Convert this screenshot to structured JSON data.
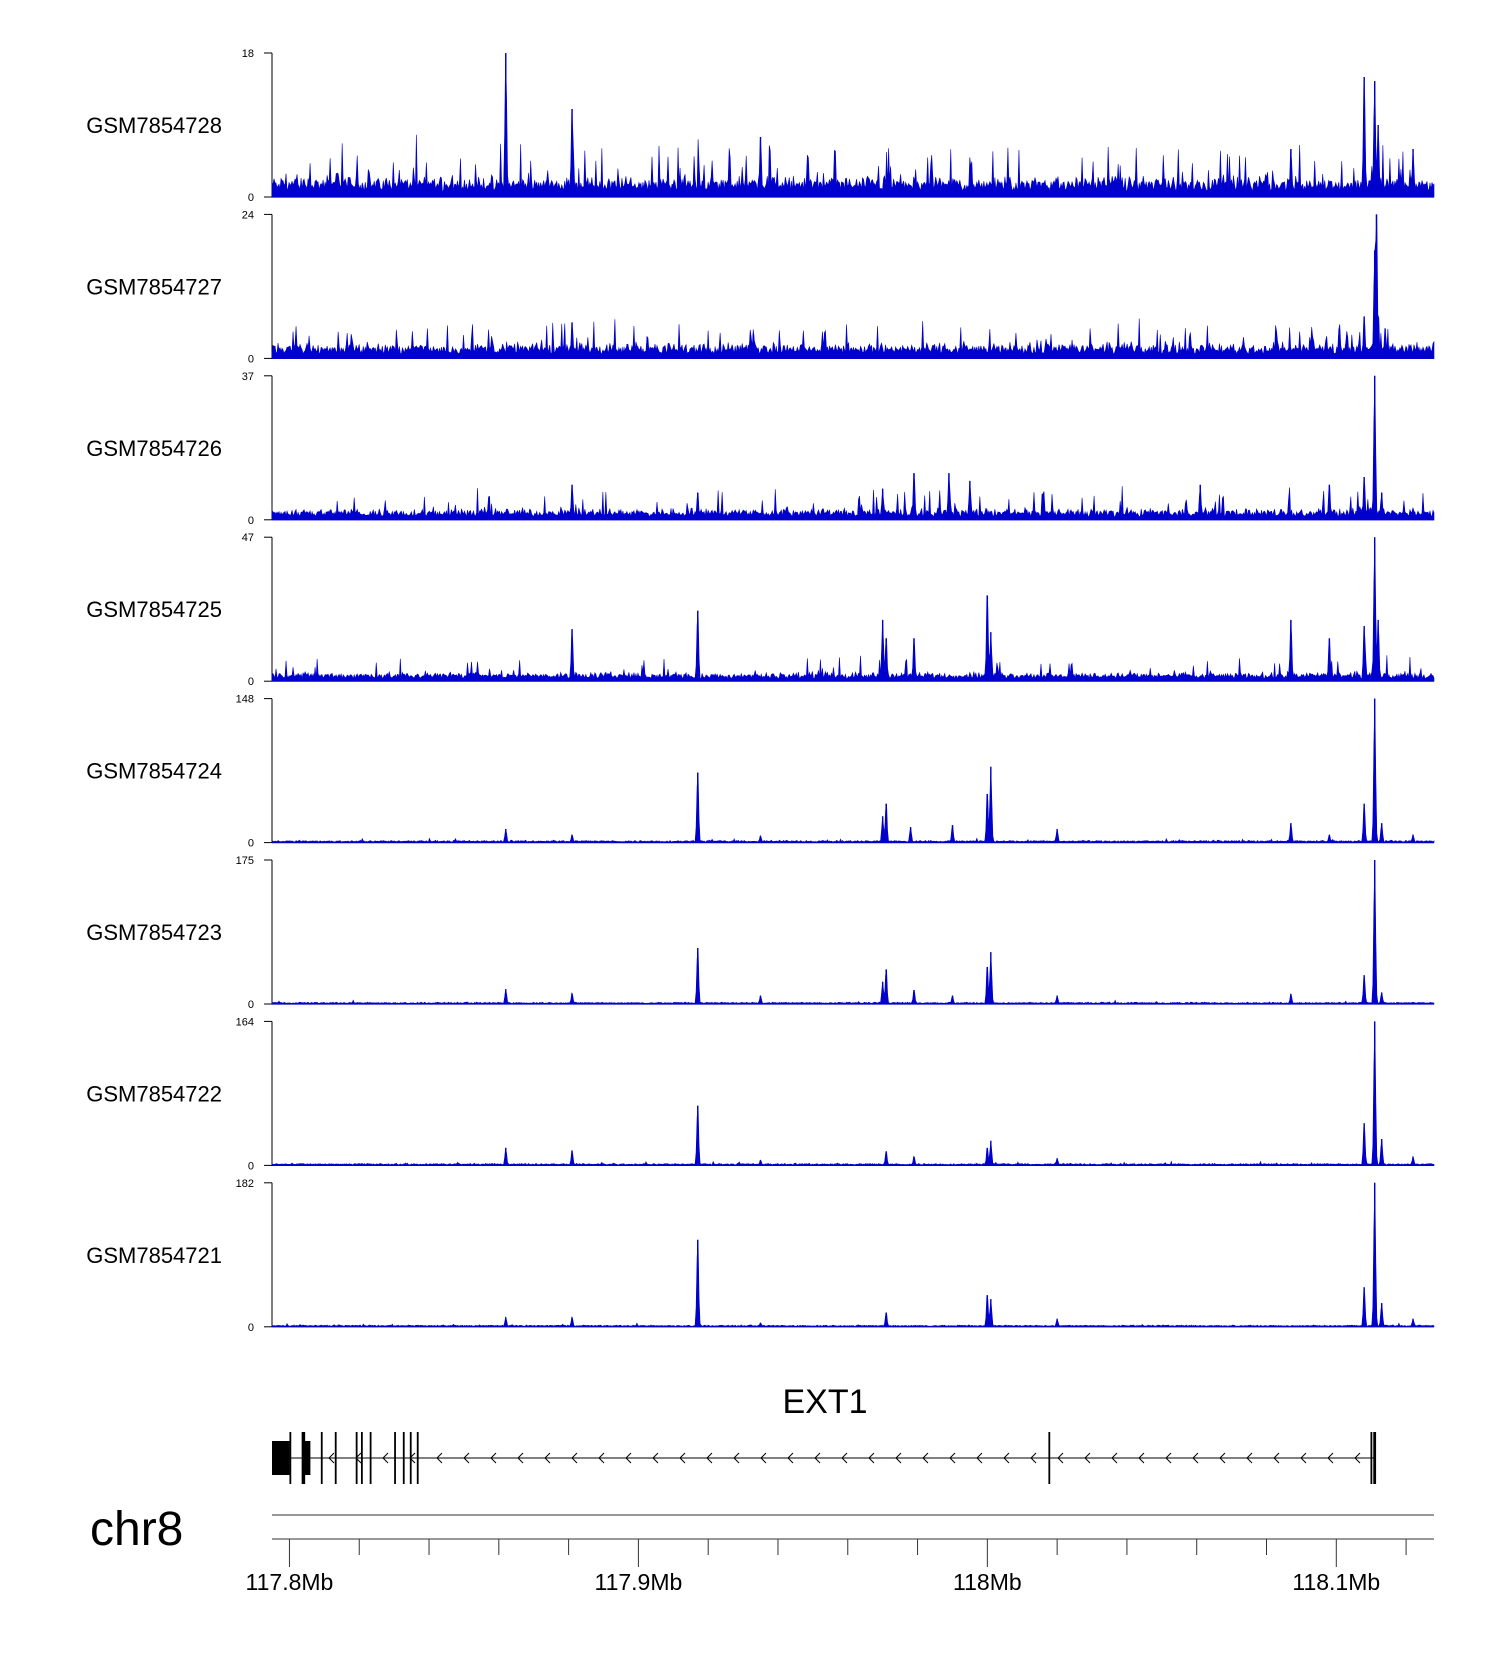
{
  "chart_data": {
    "type": "area",
    "title": "",
    "xlabel": "",
    "ylabel": "",
    "x_units": "Mb",
    "xlim": [
      117.795,
      118.128
    ],
    "grid": false,
    "color": "#0000cc",
    "chromosome": "chr8",
    "x_ticks": [
      117.8,
      117.9,
      118.0,
      118.1
    ],
    "x_tick_labels": [
      "117.8Mb",
      "117.9Mb",
      "118Mb",
      "118.1Mb"
    ],
    "x_minor_step": 0.02,
    "tracks": [
      {
        "name": "GSM7854728",
        "ymax": 18,
        "ymin": 0,
        "ymax_label": "18",
        "ymin_label": "0",
        "baseline": 1.6,
        "noise": 1.2,
        "spike_rate": 0.1,
        "spike_scale": 5.0,
        "peaks": [
          [
            117.862,
            18
          ],
          [
            117.881,
            11
          ],
          [
            117.935,
            7.5
          ],
          [
            118.087,
            6
          ],
          [
            118.108,
            15
          ],
          [
            118.111,
            14.5
          ],
          [
            118.112,
            9
          ],
          [
            118.122,
            6
          ]
        ]
      },
      {
        "name": "GSM7854727",
        "ymax": 24,
        "ymin": 0,
        "ymax_label": "24",
        "ymin_label": "0",
        "baseline": 1.6,
        "noise": 1.2,
        "spike_rate": 0.09,
        "spike_scale": 4.5,
        "peaks": [
          [
            117.881,
            6
          ],
          [
            117.933,
            4
          ],
          [
            118.108,
            7
          ],
          [
            118.111,
            18
          ],
          [
            118.1115,
            24
          ],
          [
            118.114,
            5
          ]
        ]
      },
      {
        "name": "GSM7854726",
        "ymax": 37,
        "ymin": 0,
        "ymax_label": "37",
        "ymin_label": "0",
        "baseline": 1.8,
        "noise": 1.5,
        "spike_rate": 0.08,
        "spike_scale": 6,
        "peaks": [
          [
            117.881,
            9
          ],
          [
            117.917,
            7
          ],
          [
            117.97,
            8
          ],
          [
            117.979,
            12
          ],
          [
            117.989,
            12
          ],
          [
            117.995,
            10
          ],
          [
            118.061,
            9
          ],
          [
            118.098,
            9
          ],
          [
            118.108,
            11
          ],
          [
            118.111,
            37
          ],
          [
            118.113,
            7
          ]
        ]
      },
      {
        "name": "GSM7854725",
        "ymax": 47,
        "ymin": 0,
        "ymax_label": "47",
        "ymin_label": "0",
        "baseline": 1.8,
        "noise": 1.5,
        "spike_rate": 0.06,
        "spike_scale": 6,
        "peaks": [
          [
            117.881,
            17
          ],
          [
            117.917,
            23
          ],
          [
            117.97,
            20
          ],
          [
            117.971,
            14
          ],
          [
            117.979,
            14
          ],
          [
            118.0,
            28
          ],
          [
            118.001,
            16
          ],
          [
            118.087,
            20
          ],
          [
            118.098,
            14
          ],
          [
            118.108,
            18
          ],
          [
            118.111,
            47
          ],
          [
            118.112,
            20
          ]
        ]
      },
      {
        "name": "GSM7854724",
        "ymax": 148,
        "ymin": 0,
        "ymax_label": "148",
        "ymin_label": "0",
        "baseline": 1.5,
        "noise": 1.0,
        "spike_rate": 0.02,
        "spike_scale": 3,
        "peaks": [
          [
            117.862,
            14
          ],
          [
            117.881,
            8
          ],
          [
            117.917,
            72
          ],
          [
            117.935,
            7
          ],
          [
            117.97,
            27
          ],
          [
            117.971,
            40
          ],
          [
            117.978,
            16
          ],
          [
            117.99,
            18
          ],
          [
            118.0,
            50
          ],
          [
            118.001,
            78
          ],
          [
            118.02,
            14
          ],
          [
            118.087,
            20
          ],
          [
            118.098,
            8
          ],
          [
            118.108,
            40
          ],
          [
            118.111,
            148
          ],
          [
            118.113,
            20
          ],
          [
            118.122,
            8
          ]
        ]
      },
      {
        "name": "GSM7854723",
        "ymax": 175,
        "ymin": 0,
        "ymax_label": "175",
        "ymin_label": "0",
        "baseline": 1.5,
        "noise": 1.0,
        "spike_rate": 0.02,
        "spike_scale": 3,
        "peaks": [
          [
            117.862,
            18
          ],
          [
            117.881,
            13
          ],
          [
            117.917,
            68
          ],
          [
            117.935,
            10
          ],
          [
            117.97,
            27
          ],
          [
            117.971,
            42
          ],
          [
            117.979,
            17
          ],
          [
            117.99,
            10
          ],
          [
            118.0,
            45
          ],
          [
            118.001,
            63
          ],
          [
            118.02,
            10
          ],
          [
            118.087,
            12
          ],
          [
            118.108,
            35
          ],
          [
            118.111,
            175
          ],
          [
            118.113,
            14
          ]
        ]
      },
      {
        "name": "GSM7854722",
        "ymax": 164,
        "ymin": 0,
        "ymax_label": "164",
        "ymin_label": "0",
        "baseline": 1.5,
        "noise": 1.0,
        "spike_rate": 0.02,
        "spike_scale": 3,
        "peaks": [
          [
            117.862,
            20
          ],
          [
            117.881,
            17
          ],
          [
            117.917,
            68
          ],
          [
            117.935,
            6
          ],
          [
            117.971,
            16
          ],
          [
            117.979,
            10
          ],
          [
            118.0,
            20
          ],
          [
            118.001,
            28
          ],
          [
            118.02,
            8
          ],
          [
            118.108,
            48
          ],
          [
            118.111,
            164
          ],
          [
            118.113,
            30
          ],
          [
            118.122,
            10
          ]
        ]
      },
      {
        "name": "GSM7854721",
        "ymax": 182,
        "ymin": 0,
        "ymax_label": "182",
        "ymin_label": "0",
        "baseline": 1.5,
        "noise": 1.0,
        "spike_rate": 0.02,
        "spike_scale": 3,
        "peaks": [
          [
            117.862,
            12
          ],
          [
            117.881,
            12
          ],
          [
            117.917,
            110
          ],
          [
            117.935,
            5
          ],
          [
            117.971,
            18
          ],
          [
            118.0,
            40
          ],
          [
            118.001,
            35
          ],
          [
            118.02,
            10
          ],
          [
            118.108,
            50
          ],
          [
            118.111,
            182
          ],
          [
            118.113,
            30
          ],
          [
            118.122,
            10
          ]
        ]
      }
    ],
    "gene": {
      "name": "EXT1",
      "strand": "-",
      "start": 117.795,
      "end": 118.111,
      "exons": [
        [
          117.795,
          117.8
        ],
        [
          117.8,
          117.8005
        ],
        [
          117.8035,
          117.8045
        ],
        [
          117.804,
          117.806
        ],
        [
          117.809,
          117.8094
        ],
        [
          117.813,
          117.8134
        ],
        [
          117.819,
          117.8194
        ],
        [
          117.8205,
          117.8209
        ],
        [
          117.823,
          117.8234
        ],
        [
          117.83,
          117.8304
        ],
        [
          117.8325,
          117.8329
        ],
        [
          117.8345,
          117.8349
        ],
        [
          117.8365,
          117.8369
        ],
        [
          118.0175,
          118.018
        ],
        [
          118.1098,
          118.1103
        ],
        [
          118.1106,
          118.1114
        ]
      ]
    }
  }
}
